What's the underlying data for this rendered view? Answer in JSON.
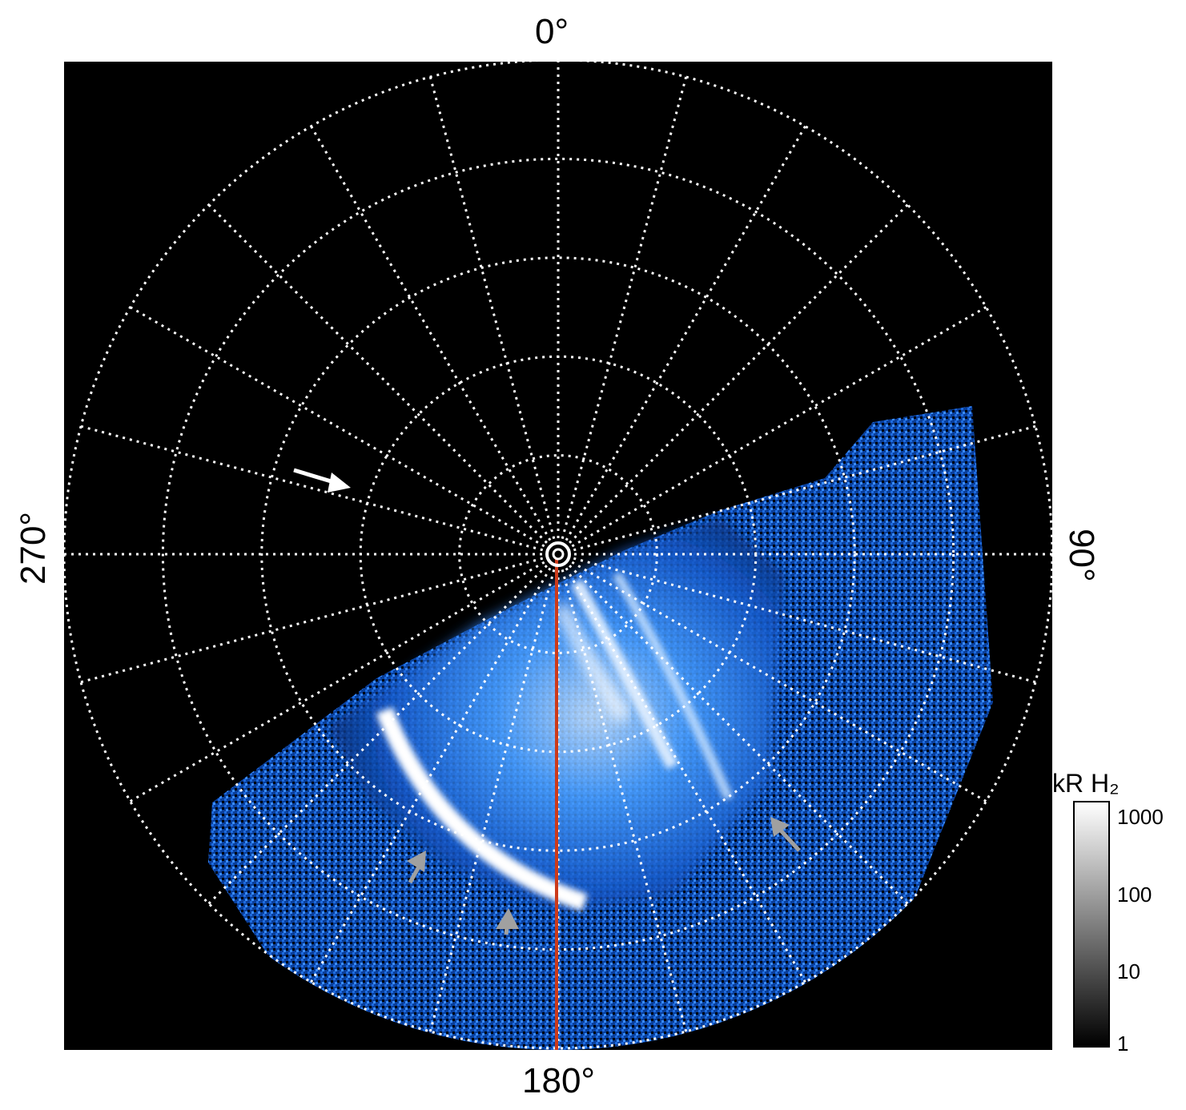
{
  "labels": {
    "top": "0°",
    "bottom": "180°",
    "left": "270°",
    "right": "90°"
  },
  "colorbar": {
    "title": "kR H₂",
    "ticks": [
      "1000",
      "100",
      "10",
      "1"
    ]
  },
  "colors": {
    "background": "#000000",
    "grid": "#ffffff",
    "aurora_dim": "#0a3f9a",
    "aurora_mid": "#2f8cff",
    "aurora_bright": "#ffffff",
    "meridian": "#cc3a1a",
    "arrow_white": "#ffffff",
    "arrow_gray": "#a0a0a0"
  },
  "icons": {
    "pole_marker": "concentric-circle-icon",
    "annotation_arrows": "arrow-icon"
  }
}
